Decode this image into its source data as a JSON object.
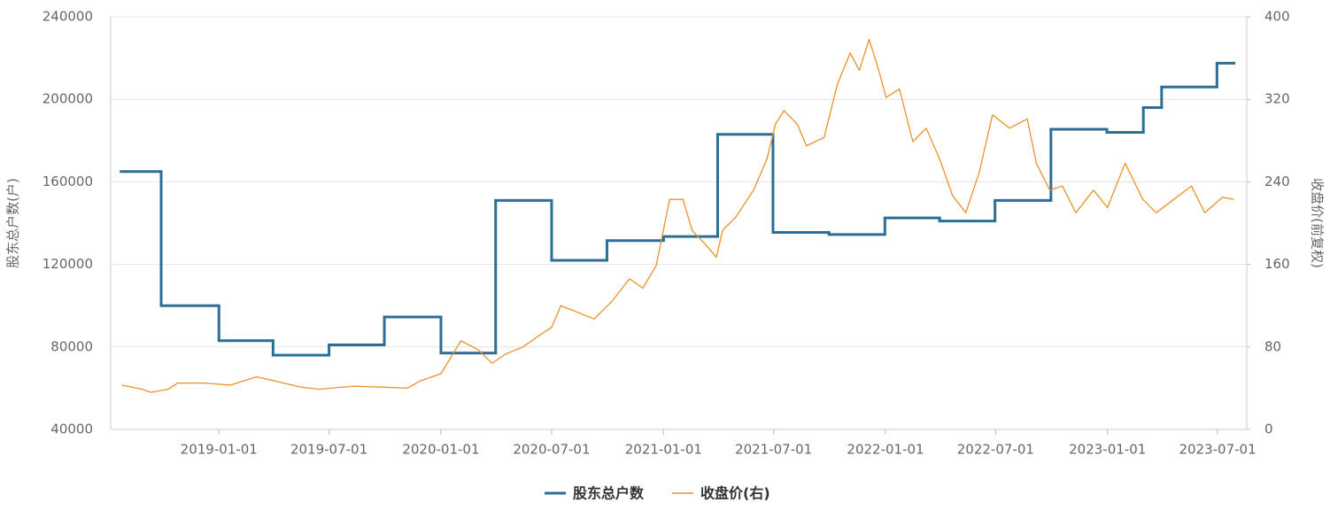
{
  "chart_data": {
    "type": "line",
    "y_label": "股东总户数(户)",
    "y2_label": "收盘价(前复权)",
    "xlim": [
      "2018-07-07",
      "2023-08-18"
    ],
    "xticks": [
      "2019-01-01",
      "2019-07-01",
      "2020-01-01",
      "2020-07-01",
      "2021-01-01",
      "2021-07-01",
      "2022-01-01",
      "2022-07-01",
      "2023-01-01",
      "2023-07-01"
    ],
    "ylim": [
      40000,
      240000
    ],
    "yticks": [
      40000,
      80000,
      120000,
      160000,
      200000,
      240000
    ],
    "y2lim": [
      0,
      400
    ],
    "y2ticks": [
      0,
      80,
      160,
      240,
      320,
      400
    ],
    "grid": true,
    "legend": "bottom",
    "series": [
      {
        "name": "股东总户数",
        "color": "#2b6e96",
        "step": "after",
        "x": [
          "2018-07-24",
          "2018-09-28",
          "2019-01-01",
          "2019-03-31",
          "2019-07-01",
          "2019-09-30",
          "2020-01-01",
          "2020-03-31",
          "2020-07-01",
          "2020-09-30",
          "2021-01-01",
          "2021-03-31",
          "2021-06-30",
          "2021-09-30",
          "2021-12-31",
          "2022-03-31",
          "2022-06-30",
          "2022-09-30",
          "2022-12-31",
          "2023-03-01",
          "2023-03-31",
          "2023-06-30",
          "2023-07-28"
        ],
        "values": [
          165000,
          100000,
          83000,
          76000,
          81000,
          94500,
          77000,
          151000,
          122000,
          131500,
          133500,
          183000,
          135500,
          134500,
          142500,
          141000,
          151000,
          185500,
          184000,
          196000,
          206000,
          217500,
          217500
        ]
      },
      {
        "name": "收盘价(右)",
        "color": "#e8932a",
        "axis": "y2",
        "x": [
          "2018-07-25",
          "2018-08-28",
          "2018-09-11",
          "2018-10-10",
          "2018-10-25",
          "2018-12-07",
          "2019-01-20",
          "2019-03-04",
          "2019-04-03",
          "2019-05-16",
          "2019-06-14",
          "2019-08-11",
          "2019-09-24",
          "2019-11-07",
          "2019-11-28",
          "2020-01-01",
          "2020-02-03",
          "2020-03-03",
          "2020-03-25",
          "2020-04-16",
          "2020-05-15",
          "2020-06-13",
          "2020-07-01",
          "2020-07-16",
          "2020-08-11",
          "2020-09-09",
          "2020-10-08",
          "2020-11-06",
          "2020-11-28",
          "2020-12-20",
          "2021-01-11",
          "2021-02-02",
          "2021-02-17",
          "2021-03-10",
          "2021-03-29",
          "2021-04-08",
          "2021-04-30",
          "2021-05-29",
          "2021-06-20",
          "2021-07-04",
          "2021-07-18",
          "2021-08-09",
          "2021-08-24",
          "2021-09-22",
          "2021-10-14",
          "2021-11-04",
          "2021-11-19",
          "2021-12-05",
          "2021-12-19",
          "2022-01-02",
          "2022-01-24",
          "2022-02-15",
          "2022-03-09",
          "2022-03-31",
          "2022-04-21",
          "2022-05-13",
          "2022-06-04",
          "2022-06-26",
          "2022-07-24",
          "2022-08-22",
          "2022-09-06",
          "2022-09-28",
          "2022-10-19",
          "2022-11-10",
          "2022-12-09",
          "2023-01-01",
          "2023-01-30",
          "2023-02-28",
          "2023-03-22",
          "2023-04-20",
          "2023-05-19",
          "2023-06-10",
          "2023-07-09",
          "2023-07-28"
        ],
        "values": [
          43,
          39,
          36,
          39,
          45,
          45,
          43,
          51,
          47,
          41,
          39,
          42,
          41,
          40,
          47,
          54,
          86,
          77,
          64,
          73,
          80,
          92,
          99,
          120,
          114,
          107,
          124,
          146,
          137,
          159,
          223,
          223,
          193,
          180,
          167,
          193,
          206,
          232,
          262,
          296,
          309,
          296,
          275,
          283,
          335,
          365,
          348,
          378,
          352,
          322,
          330,
          279,
          292,
          262,
          227,
          210,
          249,
          305,
          292,
          301,
          258,
          232,
          236,
          210,
          232,
          215,
          258,
          223,
          210,
          223,
          236,
          210,
          225,
          223
        ]
      }
    ]
  }
}
